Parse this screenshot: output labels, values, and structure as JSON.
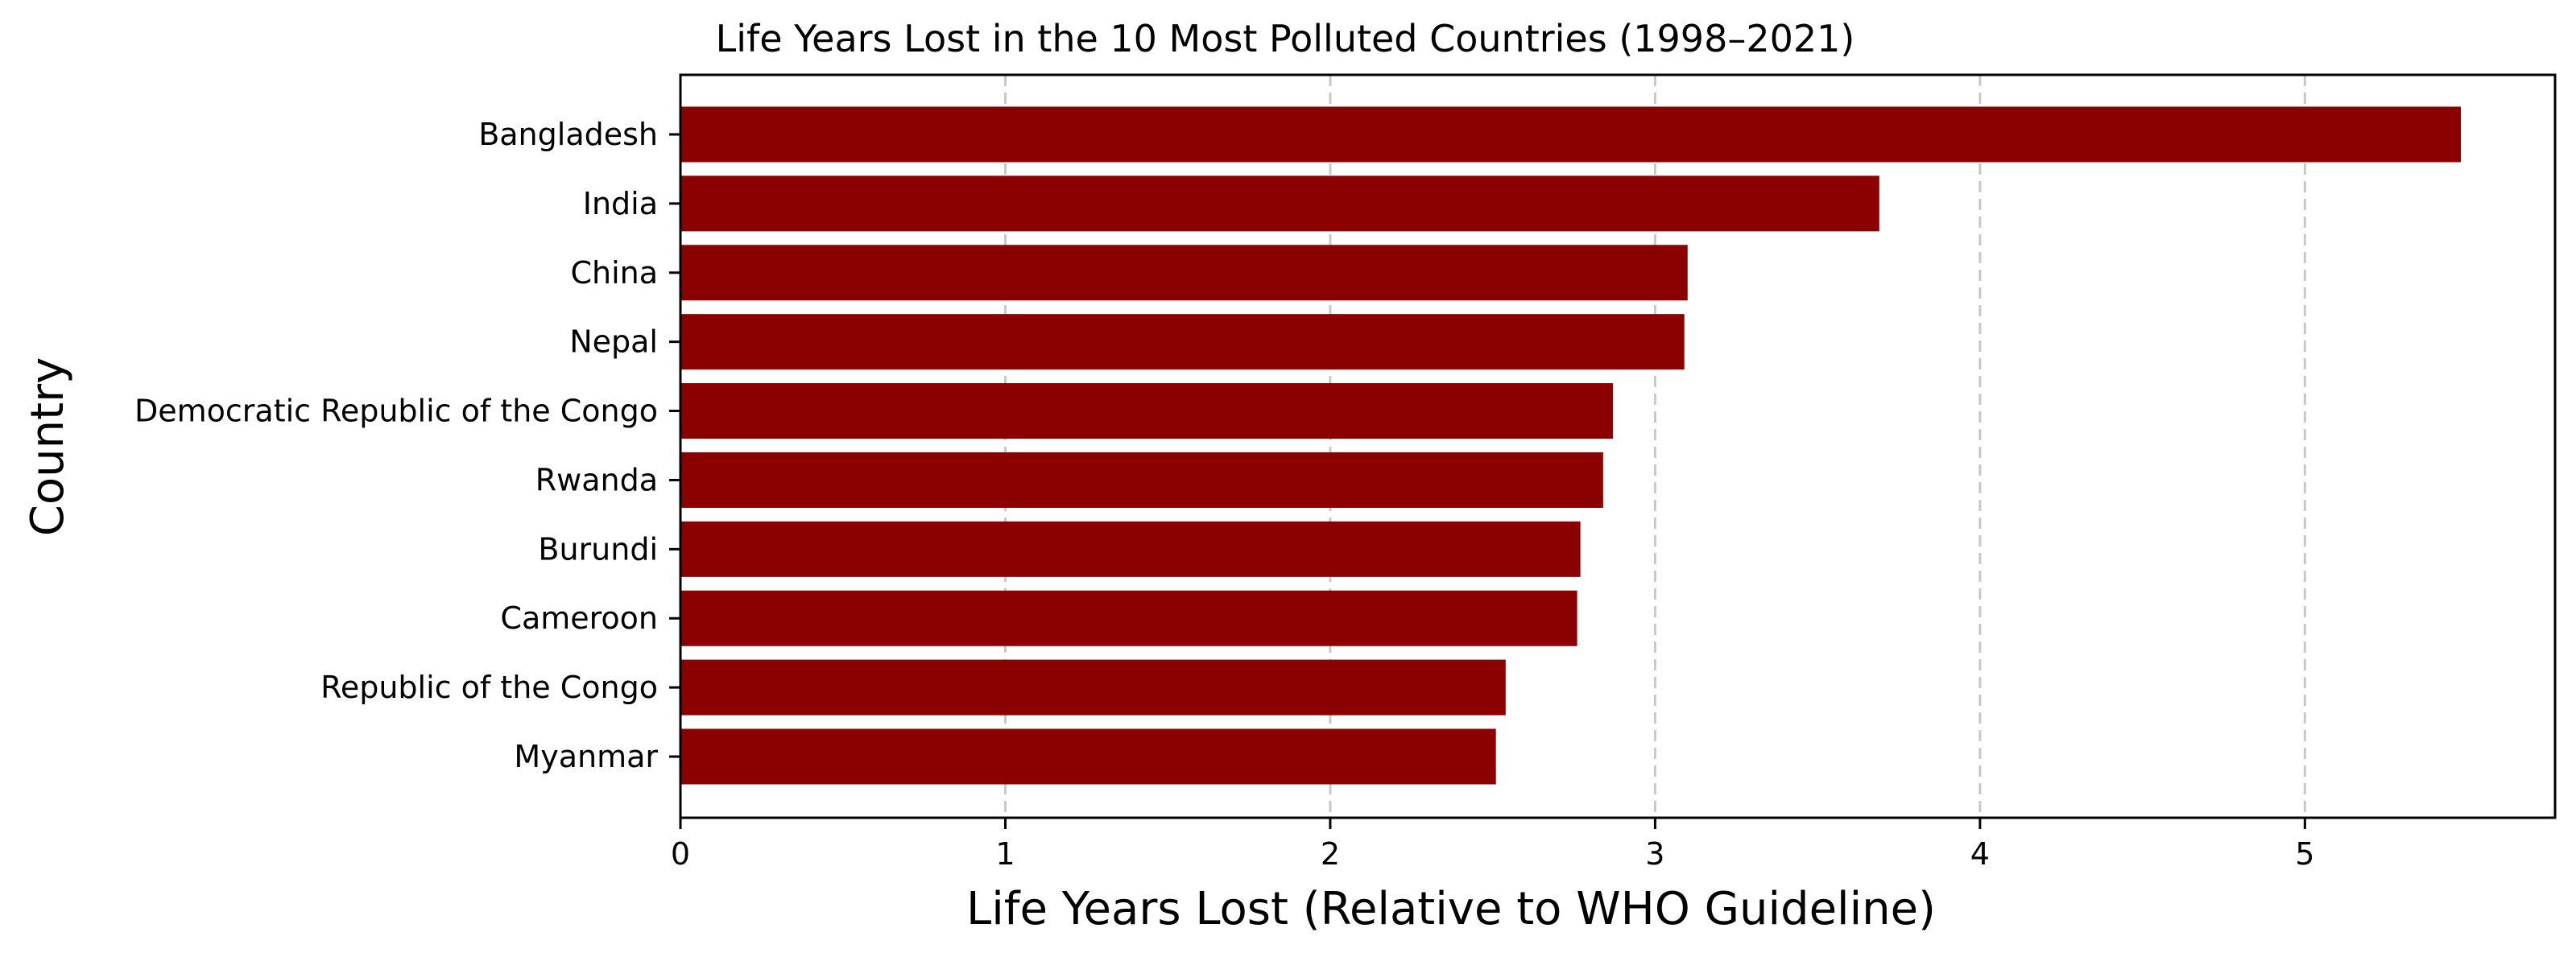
{
  "chart_data": {
    "type": "bar",
    "orientation": "horizontal",
    "title": "Life Years Lost in the 10 Most Polluted Countries (1998–2021)",
    "xlabel": "Life Years Lost (Relative to WHO Guideline)",
    "ylabel": "Country",
    "categories": [
      "Bangladesh",
      "India",
      "China",
      "Nepal",
      "Democratic Republic of the Congo",
      "Rwanda",
      "Burundi",
      "Cameroon",
      "Republic of the Congo",
      "Myanmar"
    ],
    "values": [
      5.48,
      3.69,
      3.1,
      3.09,
      2.87,
      2.84,
      2.77,
      2.76,
      2.54,
      2.51
    ],
    "xlim": [
      0,
      5.77
    ],
    "xticks": [
      "0",
      "1",
      "2",
      "3",
      "4",
      "5"
    ],
    "grid": "x-axis, dashed",
    "bar_color": "#8b0000"
  }
}
